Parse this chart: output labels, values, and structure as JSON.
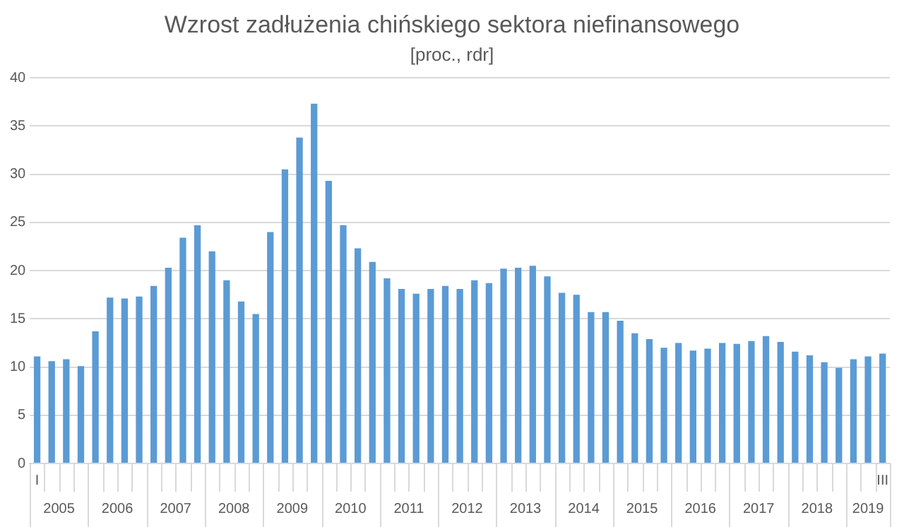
{
  "chart_data": {
    "type": "bar",
    "title": "Wzrost zadłużenia chińskiego sektora niefinansowego",
    "subtitle": "[proc., rdr]",
    "categories": [
      "I",
      null,
      null,
      null,
      null,
      null,
      null,
      null,
      null,
      null,
      null,
      null,
      null,
      null,
      null,
      null,
      null,
      null,
      null,
      null,
      null,
      null,
      null,
      null,
      null,
      null,
      null,
      null,
      null,
      null,
      null,
      null,
      null,
      null,
      null,
      null,
      null,
      null,
      null,
      null,
      null,
      null,
      null,
      null,
      null,
      null,
      null,
      null,
      null,
      null,
      null,
      null,
      null,
      null,
      null,
      null,
      null,
      null,
      "III"
    ],
    "values": [
      11.1,
      10.6,
      10.8,
      10.1,
      13.7,
      17.2,
      17.1,
      17.3,
      18.4,
      20.3,
      23.4,
      24.7,
      22.0,
      19.0,
      16.8,
      15.5,
      24.0,
      30.5,
      33.8,
      37.3,
      29.3,
      24.7,
      22.3,
      20.9,
      19.2,
      18.1,
      17.6,
      18.1,
      18.4,
      18.1,
      19.0,
      18.7,
      20.2,
      20.3,
      20.5,
      19.4,
      17.7,
      17.5,
      15.7,
      15.7,
      14.8,
      13.5,
      12.9,
      12.0,
      12.5,
      11.7,
      11.9,
      12.5,
      12.4,
      12.7,
      13.2,
      12.6,
      11.6,
      11.2,
      10.5,
      9.9,
      10.8,
      11.1,
      11.4
    ],
    "color": "#5b9bd5",
    "ylim": [
      0,
      40
    ],
    "yticks": [
      0,
      5,
      10,
      15,
      20,
      25,
      30,
      35,
      40
    ],
    "grid": "y",
    "annotations": [
      "2005",
      "2006",
      "2007",
      "2008",
      "2009",
      "2010",
      "2011",
      "2012",
      "2013",
      "2014",
      "2015",
      "2016",
      "2017",
      "2018",
      "2019"
    ]
  }
}
